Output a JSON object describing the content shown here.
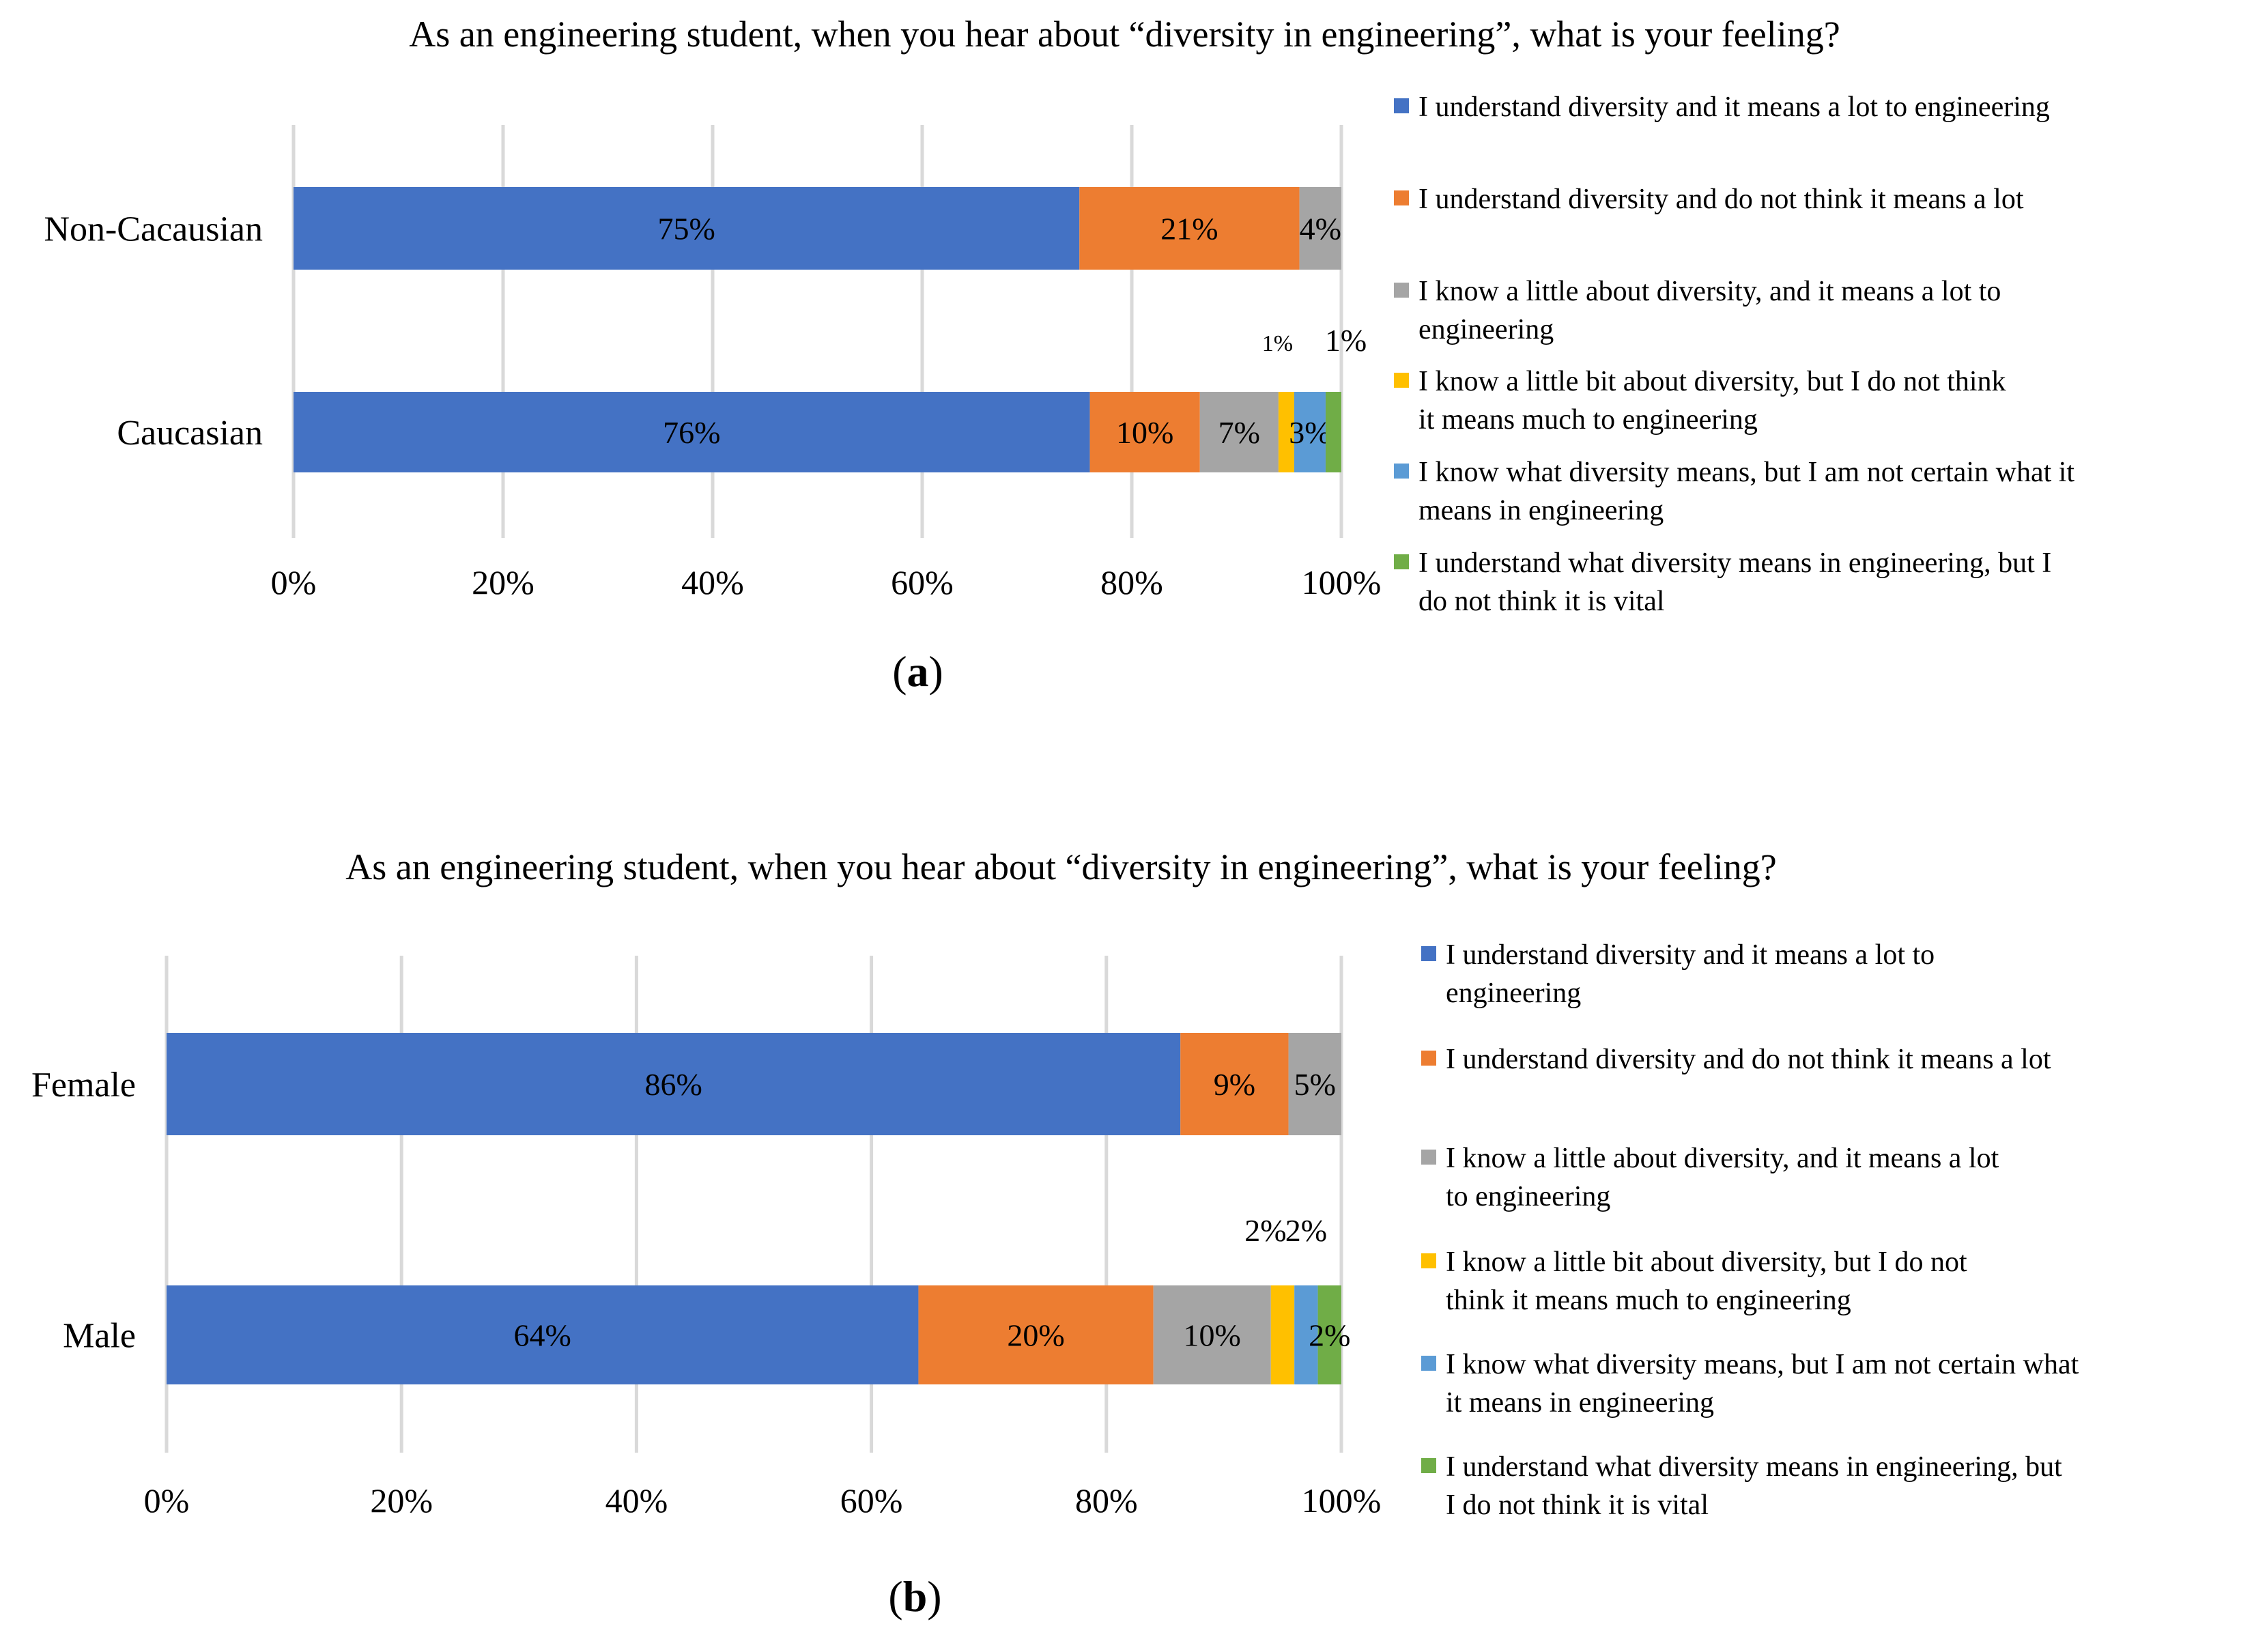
{
  "chart_data": [
    {
      "type": "bar",
      "orientation": "horizontal",
      "stacked": true,
      "panel_label": "a",
      "title": "As an engineering student, when you hear about “diversity in engineering”, what is your feeling?",
      "categories": [
        "Non-Cacausian",
        "Caucasian"
      ],
      "xlim": [
        0,
        100
      ],
      "x_ticks": [
        "0%",
        "20%",
        "40%",
        "60%",
        "80%",
        "100%"
      ],
      "grid": true,
      "legend_position": "right",
      "series": [
        {
          "name": "I understand diversity and it means a lot to engineering",
          "color": "#4472c4",
          "values": [
            75,
            76
          ],
          "labels": [
            "75%",
            "76%"
          ]
        },
        {
          "name": "I understand diversity and do not think it means a lot",
          "color": "#ed7d31",
          "values": [
            21,
            10.5
          ],
          "labels": [
            "21%",
            "10%"
          ]
        },
        {
          "name": "I know a little  about diversity, and it means a lot to engineering",
          "color": "#a5a5a5",
          "values": [
            4,
            7.5
          ],
          "labels": [
            "4%",
            "7%"
          ]
        },
        {
          "name": "I know a little bit about diversity, but I do not think it means much to engineering",
          "color": "#ffc000",
          "values": [
            0,
            1.5
          ],
          "labels": [
            "",
            "1%"
          ]
        },
        {
          "name": "I know what diversity means, but I am not certain what it means in engineering",
          "color": "#5b9bd5",
          "values": [
            0,
            3
          ],
          "labels": [
            "",
            "3%"
          ]
        },
        {
          "name": "I understand what diversity means in engineering, but I do not think it is vital",
          "color": "#70ad47",
          "values": [
            0,
            1.5
          ],
          "labels": [
            "",
            "1%"
          ]
        }
      ]
    },
    {
      "type": "bar",
      "orientation": "horizontal",
      "stacked": true,
      "panel_label": "b",
      "title": "As an engineering student, when you hear about “diversity in engineering”, what is your feeling?",
      "categories": [
        "Female",
        "Male"
      ],
      "xlim": [
        0,
        100
      ],
      "x_ticks": [
        "0%",
        "20%",
        "40%",
        "60%",
        "80%",
        "100%"
      ],
      "grid": true,
      "legend_position": "right",
      "series": [
        {
          "name": "I understand diversity and it means a lot to engineering",
          "color": "#4472c4",
          "values": [
            86.3,
            64
          ],
          "labels": [
            "86%",
            "64%"
          ]
        },
        {
          "name": "I understand diversity and do not think it means a lot",
          "color": "#ed7d31",
          "values": [
            9.2,
            20
          ],
          "labels": [
            "9%",
            "20%"
          ]
        },
        {
          "name": "I know a little  about diversity, and it means a lot to engineering",
          "color": "#a5a5a5",
          "values": [
            4.5,
            10
          ],
          "labels": [
            "5%",
            "10%"
          ]
        },
        {
          "name": "I know a little bit about diversity, but I do not think it means much to engineering",
          "color": "#ffc000",
          "values": [
            0,
            2
          ],
          "labels": [
            "",
            "2%"
          ]
        },
        {
          "name": "I know what diversity means, but I am not certain what it means in engineering",
          "color": "#5b9bd5",
          "values": [
            0,
            2
          ],
          "labels": [
            "",
            "2%"
          ]
        },
        {
          "name": "I understand what diversity means in engineering, but I do not think it is vital",
          "color": "#70ad47",
          "values": [
            0,
            2
          ],
          "labels": [
            "",
            "2%"
          ]
        }
      ]
    }
  ]
}
